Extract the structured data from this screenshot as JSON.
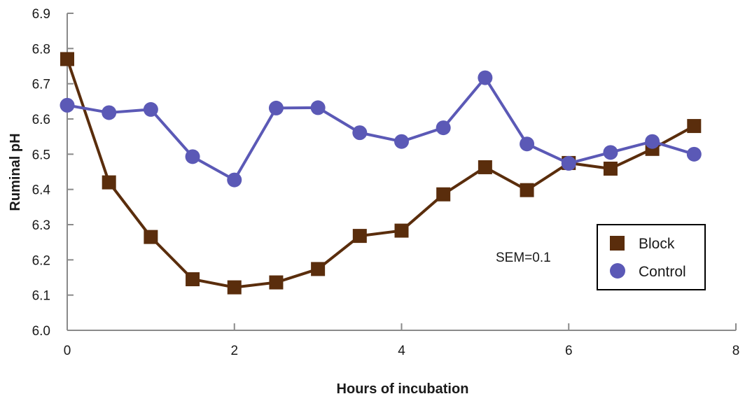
{
  "chart_data": {
    "type": "line",
    "title": "",
    "xlabel": "Hours of incubation",
    "ylabel": "Ruminal pH",
    "xlim": [
      0,
      8
    ],
    "ylim": [
      6.0,
      6.9
    ],
    "xticks": [
      0,
      2,
      4,
      6,
      8
    ],
    "xtick_labels": [
      "0",
      "2",
      "4",
      "6",
      "8"
    ],
    "yticks": [
      6.0,
      6.1,
      6.2,
      6.3,
      6.4,
      6.5,
      6.6,
      6.7,
      6.8,
      6.9
    ],
    "ytick_labels": [
      "6.0",
      "6.1",
      "6.2",
      "6.3",
      "6.4",
      "6.5",
      "6.6",
      "6.7",
      "6.8",
      "6.9"
    ],
    "grid": false,
    "legend_position": "right",
    "annotation": "SEM=0.1",
    "series": [
      {
        "name": "Block",
        "marker": "square",
        "color": "#5a2d0c",
        "x": [
          0,
          0.5,
          1,
          1.5,
          2,
          2.5,
          3,
          3.5,
          4,
          4.5,
          5,
          5.5,
          6,
          6.5,
          7,
          7.5
        ],
        "y": [
          6.77,
          6.42,
          6.265,
          6.145,
          6.122,
          6.136,
          6.174,
          6.268,
          6.283,
          6.386,
          6.463,
          6.398,
          6.475,
          6.459,
          6.515,
          6.58
        ]
      },
      {
        "name": "Control",
        "marker": "circle",
        "color": "#5b59b6",
        "x": [
          0,
          0.5,
          1,
          1.5,
          2,
          2.5,
          3,
          3.5,
          4,
          4.5,
          5,
          5.5,
          6,
          6.5,
          7,
          7.5
        ],
        "y": [
          6.639,
          6.618,
          6.627,
          6.493,
          6.427,
          6.631,
          6.632,
          6.561,
          6.536,
          6.575,
          6.717,
          6.529,
          6.474,
          6.505,
          6.536,
          6.5
        ]
      }
    ]
  }
}
